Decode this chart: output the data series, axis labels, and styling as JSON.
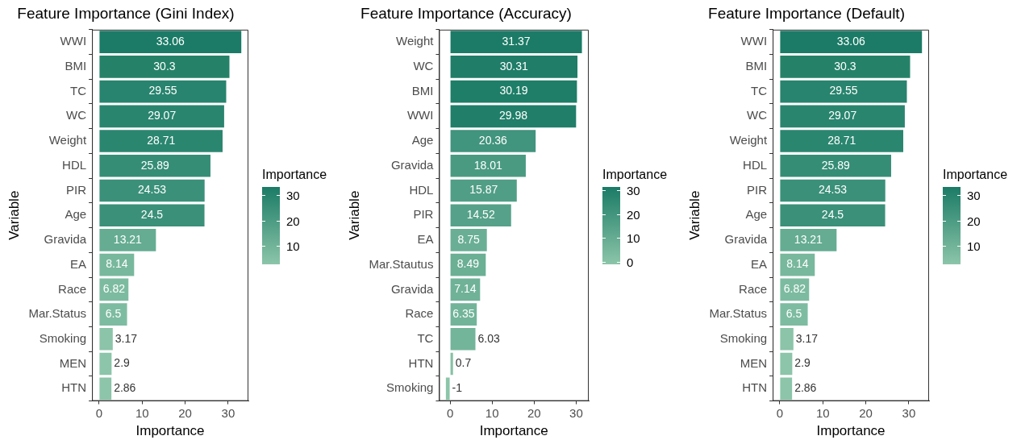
{
  "chart_data": [
    {
      "type": "bar",
      "orientation": "horizontal",
      "title": "Feature Importance (Gini Index)",
      "xlabel": "Importance",
      "ylabel": "Variable",
      "clabel": "Importance",
      "categories": [
        "WWI",
        "BMI",
        "TC",
        "WC",
        "Weight",
        "HDL",
        "PIR",
        "Age",
        "Gravida",
        "EA",
        "Race",
        "Mar.Status",
        "Smoking",
        "MEN",
        "HTN"
      ],
      "values": [
        33.06,
        30.3,
        29.55,
        29.07,
        28.71,
        25.89,
        24.53,
        24.5,
        13.21,
        8.14,
        6.82,
        6.5,
        3.17,
        2.9,
        2.86
      ],
      "colors": [
        "#1b7b66",
        "#258268",
        "#28846e",
        "#2a856f",
        "#2b8670",
        "#368d76",
        "#3b9079",
        "#3b9079",
        "#65ac92",
        "#78b89d",
        "#7dbba0",
        "#7ebca1",
        "#8bc4a8",
        "#8cc5a9",
        "#8cc5a9"
      ],
      "xlim": [
        -1.65,
        34.71
      ],
      "xticks": [
        0,
        10,
        20,
        30
      ],
      "clim": [
        2.86,
        33.06
      ],
      "cticks": [
        10,
        20,
        30
      ],
      "data_labels": true,
      "grid": false
    },
    {
      "type": "bar",
      "orientation": "horizontal",
      "title": "Feature Importance (Accuracy)",
      "xlabel": "Importance",
      "ylabel": "Variable",
      "clabel": "Importance",
      "categories": [
        "Weight",
        "WC",
        "BMI",
        "WWI",
        "Age",
        "Gravida",
        "HDL",
        "PIR",
        "EA",
        "Mar.Stautus",
        "Gravida",
        "Race",
        "TC",
        "HTN",
        "Smoking"
      ],
      "values": [
        31.37,
        30.31,
        30.19,
        29.98,
        20.36,
        18.01,
        15.87,
        14.52,
        8.75,
        8.49,
        7.14,
        6.35,
        6.03,
        0.7,
        -1.0
      ],
      "colors": [
        "#1b7b66",
        "#1f7d68",
        "#1f7e68",
        "#207e69",
        "#41947d",
        "#4a9a82",
        "#519e86",
        "#56a189",
        "#6aaf95",
        "#6baf95",
        "#70b298",
        "#72b49a",
        "#73b59a",
        "#86c1a5",
        "#8cc5a9"
      ],
      "xlim": [
        -2.62,
        32.99
      ],
      "xticks": [
        0,
        10,
        20,
        30
      ],
      "clim": [
        -1.0,
        31.37
      ],
      "cticks": [
        0,
        10,
        20,
        30
      ],
      "data_labels": true,
      "grid": false
    },
    {
      "type": "bar",
      "orientation": "horizontal",
      "title": "Feature Importance (Default)",
      "xlabel": "Importance",
      "ylabel": "Variable",
      "clabel": "Importance",
      "categories": [
        "WWI",
        "BMI",
        "TC",
        "WC",
        "Weight",
        "HDL",
        "PIR",
        "Age",
        "Gravida",
        "EA",
        "Race",
        "Mar.Status",
        "Smoking",
        "MEN",
        "HTN"
      ],
      "values": [
        33.06,
        30.3,
        29.55,
        29.07,
        28.71,
        25.89,
        24.53,
        24.5,
        13.21,
        8.14,
        6.82,
        6.5,
        3.17,
        2.9,
        2.86
      ],
      "colors": [
        "#1b7b66",
        "#258268",
        "#28846e",
        "#2a856f",
        "#2b8670",
        "#368d76",
        "#3b9079",
        "#3b9079",
        "#65ac92",
        "#78b89d",
        "#7dbba0",
        "#7ebca1",
        "#8bc4a8",
        "#8cc5a9",
        "#8cc5a9"
      ],
      "xlim": [
        -1.65,
        34.71
      ],
      "xticks": [
        0,
        10,
        20,
        30
      ],
      "clim": [
        2.86,
        33.06
      ],
      "cticks": [
        10,
        20,
        30
      ],
      "data_labels": true,
      "grid": false
    }
  ]
}
